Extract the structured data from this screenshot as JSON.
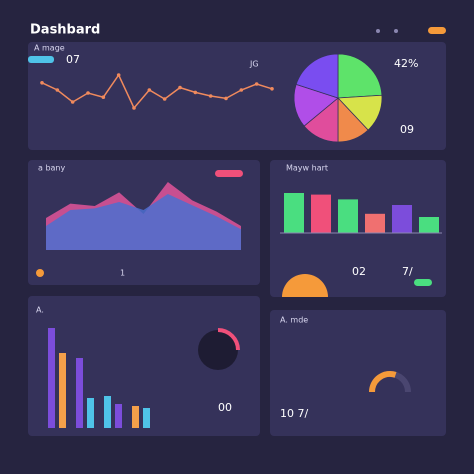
{
  "header": {
    "title": "Dashbard"
  },
  "line_panel": {
    "label": "A mage",
    "value": "07",
    "code": "JG",
    "stat": "42%",
    "stat2": "09",
    "line_color": "#f08a5d",
    "values": [
      72,
      60,
      40,
      55,
      48,
      85,
      30,
      60,
      45,
      64,
      56,
      50,
      46,
      60,
      70,
      62
    ],
    "pie_values": [
      24,
      14,
      12,
      14,
      16,
      20
    ],
    "pie_colors": [
      "#5ee36a",
      "#d7e34a",
      "#f08a4b",
      "#e04d9c",
      "#b04ee8",
      "#7a4df0"
    ]
  },
  "area_panel": {
    "label": "a bany",
    "value": "1",
    "series": [
      {
        "color": "#e0559a",
        "values": [
          40,
          58,
          55,
          72,
          45,
          85,
          62,
          48,
          30
        ]
      },
      {
        "color": "#4b6fd0",
        "values": [
          30,
          50,
          52,
          60,
          50,
          70,
          56,
          42,
          26
        ]
      }
    ]
  },
  "bar_panel": {
    "label": "Mayw hart",
    "value": "02",
    "stat": "7/",
    "values": [
      50,
      48,
      42,
      24,
      35,
      20
    ],
    "colors": [
      "#4ade80",
      "#f0507a",
      "#4ade80",
      "#f07070",
      "#7c4ddb",
      "#4ade80"
    ]
  },
  "column_panel": {
    "label": "A.",
    "value": "00",
    "values": [
      100,
      75,
      70,
      30,
      32,
      24,
      22,
      20
    ],
    "colors": [
      "#7c4ddb",
      "#f5a04a",
      "#7c4ddb",
      "#4fc3e8",
      "#4fc3e8",
      "#7c4ddb",
      "#f5a04a",
      "#4fc3e8"
    ]
  },
  "gauge_panel": {
    "label": "A. mde",
    "value": "10 7/",
    "gauge": 60,
    "gauge_color": "#f59a3a"
  }
}
